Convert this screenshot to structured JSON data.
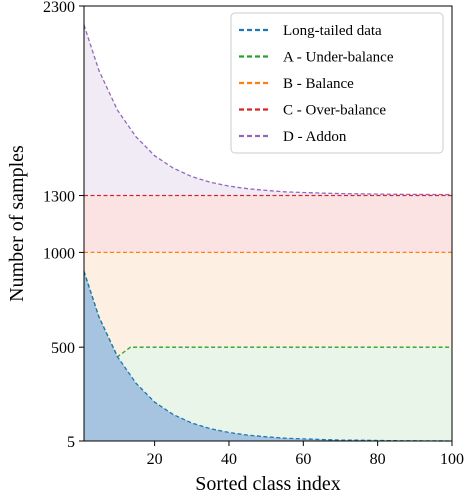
{
  "chart_data": {
    "type": "line",
    "xlabel": "Sorted class index",
    "ylabel": "Number of samples",
    "xlim": [
      1,
      100
    ],
    "ylim": [
      5,
      2300
    ],
    "xticks": [
      20,
      40,
      60,
      80,
      100
    ],
    "yticks": [
      5,
      500,
      1000,
      1300,
      2300
    ],
    "legend_position": "top-right",
    "grid": false,
    "series": [
      {
        "name": "Long-tailed data",
        "color": "#1f77b4",
        "fill": "#a6c3df",
        "x": [
          1,
          5,
          10,
          15,
          20,
          25,
          30,
          35,
          40,
          45,
          50,
          55,
          60,
          65,
          70,
          75,
          80,
          85,
          90,
          95,
          100
        ],
        "y": [
          900,
          660,
          450,
          310,
          210,
          145,
          100,
          70,
          50,
          36,
          27,
          20,
          16,
          13,
          10,
          9,
          7.5,
          6.5,
          6,
          5.5,
          5
        ]
      },
      {
        "name": "A - Under-balance",
        "color": "#2ca02c",
        "fill": "#eaf5e9",
        "x": [
          1,
          5,
          10,
          13.5,
          15,
          20,
          30,
          40,
          50,
          60,
          70,
          80,
          90,
          100
        ],
        "y": [
          900,
          660,
          450,
          500,
          500,
          500,
          500,
          500,
          500,
          500,
          500,
          500,
          500,
          500
        ]
      },
      {
        "name": "B - Balance",
        "color": "#ff7f0e",
        "fill": "#fdf0e2",
        "x": [
          1,
          100
        ],
        "y": [
          1000,
          1000
        ]
      },
      {
        "name": "C - Over-balance",
        "color": "#d62728",
        "fill": "#fbe3e4",
        "x": [
          1,
          100
        ],
        "y": [
          1300,
          1300
        ]
      },
      {
        "name": "D - Addon",
        "color": "#9467bd",
        "fill": "#f1ebf6",
        "x": [
          1,
          5,
          10,
          15,
          20,
          25,
          30,
          35,
          40,
          45,
          50,
          55,
          60,
          65,
          70,
          75,
          80,
          85,
          90,
          95,
          100
        ],
        "y": [
          2200,
          1960,
          1750,
          1610,
          1510,
          1445,
          1400,
          1370,
          1350,
          1336,
          1327,
          1320,
          1316,
          1313,
          1310,
          1309,
          1307.5,
          1306.5,
          1306,
          1305.5,
          1305
        ]
      }
    ]
  }
}
